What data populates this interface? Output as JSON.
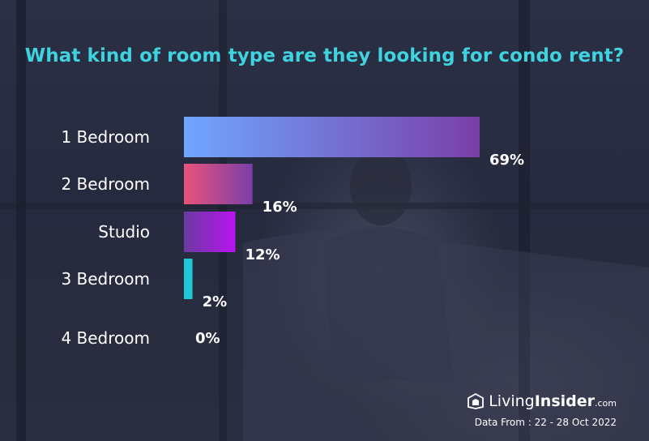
{
  "title": "What kind of room type are they looking for condo rent?",
  "brand": {
    "name_part1": "Living",
    "name_part2": "Insider",
    "name_suffix": ".com"
  },
  "source_note": "Data From : 22 - 28 Oct 2022",
  "chart_data": {
    "type": "bar",
    "orientation": "horizontal",
    "title": "What kind of room type are they looking for condo rent?",
    "categories": [
      "1 Bedroom",
      "2 Bedroom",
      "Studio",
      "3 Bedroom",
      "4 Bedroom"
    ],
    "values": [
      69,
      16,
      12,
      2,
      0
    ],
    "value_labels": [
      "69%",
      "16%",
      "12%",
      "2%",
      "0%"
    ],
    "unit": "%",
    "xlim": [
      0,
      69
    ],
    "grid": false,
    "bar_colors": [
      [
        "#6fa6ff",
        "#7a3fa8"
      ],
      [
        "#e8527a",
        "#7a3fa8"
      ],
      [
        "#6b3aa0",
        "#b914f0"
      ],
      [
        "#1ec6d6",
        "#1ec6d6"
      ],
      [
        "#1ec6d6",
        "#1ec6d6"
      ]
    ]
  }
}
